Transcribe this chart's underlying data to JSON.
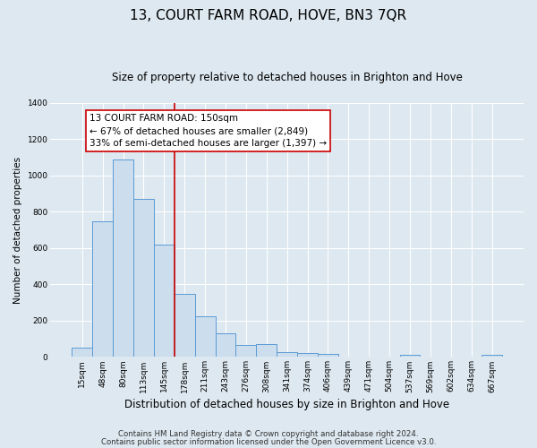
{
  "title": "13, COURT FARM ROAD, HOVE, BN3 7QR",
  "subtitle": "Size of property relative to detached houses in Brighton and Hove",
  "xlabel": "Distribution of detached houses by size in Brighton and Hove",
  "ylabel": "Number of detached properties",
  "footnote1": "Contains HM Land Registry data © Crown copyright and database right 2024.",
  "footnote2": "Contains public sector information licensed under the Open Government Licence v3.0.",
  "categories": [
    "15sqm",
    "48sqm",
    "80sqm",
    "113sqm",
    "145sqm",
    "178sqm",
    "211sqm",
    "243sqm",
    "276sqm",
    "308sqm",
    "341sqm",
    "374sqm",
    "406sqm",
    "439sqm",
    "471sqm",
    "504sqm",
    "537sqm",
    "569sqm",
    "602sqm",
    "634sqm",
    "667sqm"
  ],
  "values": [
    50,
    750,
    1090,
    870,
    620,
    350,
    225,
    130,
    65,
    70,
    25,
    20,
    15,
    0,
    0,
    0,
    10,
    0,
    0,
    0,
    10
  ],
  "bar_color": "#ccdded",
  "bar_edge_color": "#5b9bd5",
  "bar_linewidth": 0.7,
  "red_line_x": 4.5,
  "red_line_color": "#cc0000",
  "annotation_line1": "13 COURT FARM ROAD: 150sqm",
  "annotation_line2": "← 67% of detached houses are smaller (2,849)",
  "annotation_line3": "33% of semi-detached houses are larger (1,397) →",
  "annotation_box_color": "#ffffff",
  "annotation_box_edge": "#cc0000",
  "ylim": [
    0,
    1400
  ],
  "background_color": "#dde8f0",
  "plot_bg_color": "#dde8f0",
  "grid_color": "#ffffff",
  "title_fontsize": 11,
  "subtitle_fontsize": 8.5,
  "xlabel_fontsize": 8.5,
  "ylabel_fontsize": 7.5,
  "tick_fontsize": 6.5,
  "annot_fontsize": 7.5,
  "footnote_fontsize": 6.2
}
